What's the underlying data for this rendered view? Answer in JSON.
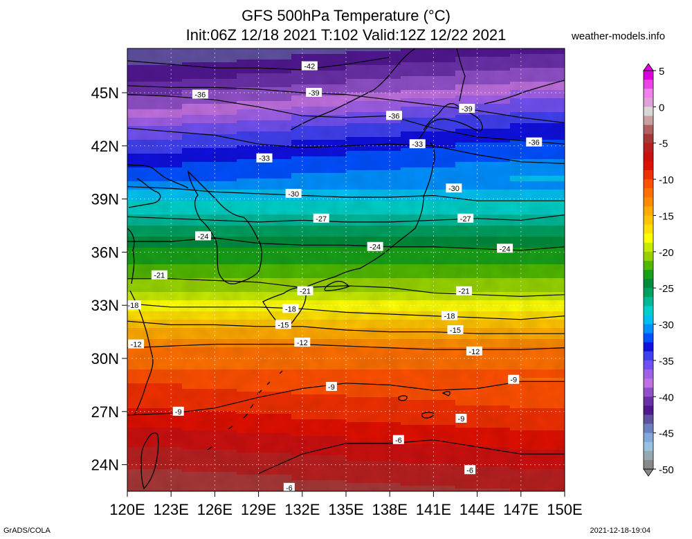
{
  "header": {
    "title_line1": "GFS 500hPa Temperature (°C)",
    "title_line2": "Init:06Z 12/18 2021 T:102 Valid:12Z 12/22 2021",
    "site": "weather-models.info"
  },
  "footer": {
    "left": "GrADS/COLA",
    "right": "2021-12-18-19:04"
  },
  "map": {
    "lat_labels": [
      "45N",
      "42N",
      "39N",
      "36N",
      "33N",
      "30N",
      "27N",
      "24N"
    ],
    "lat_values": [
      45,
      42,
      39,
      36,
      33,
      30,
      27,
      24
    ],
    "lon_labels": [
      "120E",
      "123E",
      "126E",
      "129E",
      "132E",
      "135E",
      "138E",
      "141E",
      "144E",
      "147E",
      "150E"
    ],
    "lon_values": [
      120,
      123,
      126,
      129,
      132,
      135,
      138,
      141,
      144,
      147,
      150
    ],
    "lat_range": [
      22.5,
      47.5
    ],
    "lon_range": [
      120,
      150
    ]
  },
  "colorbar": {
    "labels": [
      "5",
      "0",
      "-5",
      "-10",
      "-15",
      "-20",
      "-25",
      "-30",
      "-35",
      "-40",
      "-45",
      "-50"
    ],
    "label_values": [
      5,
      0,
      -5,
      -10,
      -15,
      -20,
      -25,
      -30,
      -35,
      -40,
      -45,
      -50
    ],
    "colors": [
      "#dd00dd",
      "#e944e6",
      "#f27ef0",
      "#e0a0d8",
      "#d7d7d7",
      "#c8a0a0",
      "#b06060",
      "#a83838",
      "#b82020",
      "#cc1010",
      "#e01000",
      "#f03000",
      "#ff5000",
      "#ff7000",
      "#ff8c00",
      "#ffaa00",
      "#ffc400",
      "#ffe000",
      "#ffff00",
      "#c8ea00",
      "#96d200",
      "#50b800",
      "#18a018",
      "#008c3c",
      "#00a060",
      "#00b898",
      "#00d0c8",
      "#00c0f0",
      "#0090ff",
      "#0050ff",
      "#1010e0",
      "#4040f0",
      "#7050f0",
      "#a060e8",
      "#c070e0",
      "#9050c8",
      "#6a30a8",
      "#501890",
      "#6050a0",
      "#6a80c0",
      "#80a8d8",
      "#98c0e0",
      "#98a8b0",
      "#888888"
    ]
  },
  "contours": [
    {
      "label": "-42",
      "lat": 46.8,
      "pts": [
        [
          120,
          46.8
        ],
        [
          123,
          46.6
        ],
        [
          126,
          46.4
        ],
        [
          129,
          46.4
        ],
        [
          132,
          46.3
        ],
        [
          135,
          46.6
        ],
        [
          138,
          47.0
        ]
      ],
      "labels_at": [
        [
          132.5,
          46.5
        ]
      ]
    },
    {
      "label": "-39",
      "lat": 45.0,
      "pts": [
        [
          120,
          45.4
        ],
        [
          123,
          45.3
        ],
        [
          126,
          45.3
        ],
        [
          129,
          45.2
        ],
        [
          132,
          45.0
        ],
        [
          135,
          44.9
        ],
        [
          138,
          44.6
        ],
        [
          141,
          44.3
        ],
        [
          144,
          44.0
        ],
        [
          147,
          43.6
        ],
        [
          150,
          43.3
        ]
      ],
      "labels_at": [
        [
          132.8,
          45.0
        ],
        [
          143.3,
          44.1
        ]
      ]
    },
    {
      "label": "-36",
      "lat": 43.8,
      "pts": [
        [
          120,
          44.9
        ],
        [
          123,
          44.8
        ],
        [
          126,
          44.6
        ],
        [
          129,
          44.2
        ],
        [
          132,
          43.7
        ],
        [
          135,
          43.6
        ],
        [
          138,
          43.7
        ],
        [
          141,
          43.0
        ],
        [
          144,
          42.5
        ],
        [
          147,
          42.3
        ],
        [
          150,
          42.1
        ]
      ],
      "labels_at": [
        [
          125,
          44.9
        ],
        [
          138.3,
          43.7
        ],
        [
          147.9,
          42.2
        ]
      ]
    },
    {
      "label": "-33",
      "lat": 42.0,
      "pts": [
        [
          120,
          43.0
        ],
        [
          123,
          42.8
        ],
        [
          126,
          42.6
        ],
        [
          129,
          42.1
        ],
        [
          132,
          41.9
        ],
        [
          135,
          42.0
        ],
        [
          138,
          42.1
        ],
        [
          141,
          42.0
        ],
        [
          144,
          41.5
        ],
        [
          147,
          41.1
        ],
        [
          150,
          41.0
        ]
      ],
      "labels_at": [
        [
          129.4,
          41.3
        ],
        [
          139.9,
          42.1
        ]
      ]
    },
    {
      "label": "-30",
      "lat": 39.5,
      "pts": [
        [
          120,
          39.7
        ],
        [
          123,
          39.6
        ],
        [
          126,
          39.4
        ],
        [
          129,
          39.3
        ],
        [
          132,
          39.2
        ],
        [
          135,
          39.1
        ],
        [
          138,
          39.1
        ],
        [
          141,
          39.2
        ],
        [
          144,
          38.9
        ],
        [
          147,
          38.9
        ],
        [
          150,
          38.9
        ]
      ],
      "labels_at": [
        [
          131.4,
          39.3
        ],
        [
          142.4,
          39.6
        ]
      ]
    },
    {
      "label": "-27",
      "lat": 37.9,
      "pts": [
        [
          120,
          38.0
        ],
        [
          123,
          37.9
        ],
        [
          126,
          37.8
        ],
        [
          129,
          37.7
        ],
        [
          132,
          37.8
        ],
        [
          135,
          37.7
        ],
        [
          138,
          37.7
        ],
        [
          141,
          37.8
        ],
        [
          144,
          37.9
        ],
        [
          147,
          37.8
        ],
        [
          150,
          38.1
        ]
      ],
      "labels_at": [
        [
          133.3,
          37.9
        ],
        [
          143.2,
          37.9
        ]
      ]
    },
    {
      "label": "-24",
      "lat": 36.4,
      "pts": [
        [
          120,
          36.6
        ],
        [
          123,
          36.6
        ],
        [
          126,
          36.8
        ],
        [
          129,
          36.5
        ],
        [
          132,
          36.4
        ],
        [
          135,
          36.4
        ],
        [
          138,
          36.3
        ],
        [
          141,
          36.3
        ],
        [
          144,
          36.2
        ],
        [
          147,
          36.1
        ],
        [
          150,
          36.3
        ]
      ],
      "labels_at": [
        [
          125.2,
          36.9
        ],
        [
          137.0,
          36.3
        ],
        [
          145.9,
          36.2
        ]
      ]
    },
    {
      "label": "-21",
      "lat": 34.4,
      "pts": [
        [
          120,
          34.5
        ],
        [
          123,
          34.5
        ],
        [
          126,
          34.4
        ],
        [
          129,
          34.3
        ],
        [
          132,
          34.0
        ],
        [
          135,
          34.1
        ],
        [
          138,
          34.0
        ],
        [
          141,
          33.7
        ],
        [
          144,
          33.6
        ],
        [
          147,
          33.5
        ],
        [
          150,
          33.6
        ]
      ],
      "labels_at": [
        [
          122.2,
          34.7
        ],
        [
          132.2,
          33.8
        ],
        [
          143.1,
          33.8
        ]
      ]
    },
    {
      "label": "-18",
      "lat": 33.0,
      "pts": [
        [
          120,
          33.1
        ],
        [
          123,
          32.9
        ],
        [
          126,
          32.9
        ],
        [
          129,
          32.9
        ],
        [
          132,
          32.8
        ],
        [
          135,
          32.6
        ],
        [
          138,
          32.5
        ],
        [
          141,
          32.4
        ],
        [
          144,
          32.3
        ],
        [
          147,
          32.2
        ],
        [
          150,
          32.4
        ]
      ],
      "labels_at": [
        [
          120.4,
          33.0
        ],
        [
          131.2,
          32.8
        ],
        [
          142.1,
          32.4
        ]
      ]
    },
    {
      "label": "-15",
      "lat": 31.8,
      "pts": [
        [
          120,
          32.1
        ],
        [
          123,
          31.9
        ],
        [
          126,
          31.9
        ],
        [
          129,
          31.8
        ],
        [
          132,
          31.8
        ],
        [
          135,
          31.6
        ],
        [
          138,
          31.5
        ],
        [
          141,
          31.5
        ],
        [
          144,
          31.4
        ],
        [
          147,
          31.4
        ],
        [
          150,
          31.4
        ]
      ],
      "labels_at": [
        [
          130.7,
          31.9
        ],
        [
          142.5,
          31.6
        ]
      ]
    },
    {
      "label": "-12",
      "lat": 30.6,
      "pts": [
        [
          120,
          30.6
        ],
        [
          123,
          30.7
        ],
        [
          126,
          30.8
        ],
        [
          129,
          30.8
        ],
        [
          132,
          30.8
        ],
        [
          135,
          30.7
        ],
        [
          138,
          30.6
        ],
        [
          141,
          30.5
        ],
        [
          144,
          30.5
        ],
        [
          147,
          30.5
        ],
        [
          150,
          30.6
        ]
      ],
      "labels_at": [
        [
          120.6,
          30.8
        ],
        [
          132.0,
          30.9
        ],
        [
          143.8,
          30.4
        ]
      ]
    },
    {
      "label": "-9",
      "lat": 27.0,
      "pts": [
        [
          120,
          26.8
        ],
        [
          123,
          26.9
        ],
        [
          126,
          27.2
        ],
        [
          129,
          27.8
        ],
        [
          132,
          28.3
        ],
        [
          135,
          28.6
        ],
        [
          138,
          28.5
        ],
        [
          141,
          28.2
        ],
        [
          144,
          28.3
        ],
        [
          147,
          28.7
        ],
        [
          150,
          28.7
        ]
      ],
      "labels_at": [
        [
          123.5,
          27.0
        ],
        [
          134.0,
          28.4
        ],
        [
          146.5,
          28.8
        ],
        [
          142.9,
          26.6
        ]
      ]
    },
    {
      "label": "-6",
      "lat": 24.5,
      "pts": [
        [
          129,
          23.5
        ],
        [
          132,
          24.6
        ],
        [
          135,
          25.2
        ],
        [
          138,
          25.2
        ],
        [
          141,
          25.4
        ],
        [
          144,
          25.0
        ],
        [
          147,
          24.6
        ],
        [
          150,
          24.6
        ]
      ],
      "labels_at": [
        [
          138.6,
          25.4
        ],
        [
          143.5,
          23.7
        ],
        [
          131.1,
          22.7
        ]
      ]
    }
  ]
}
